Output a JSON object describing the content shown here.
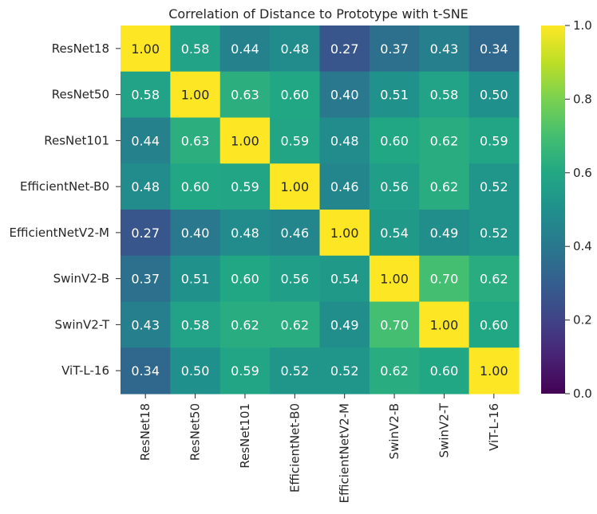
{
  "chart_data": {
    "type": "heatmap",
    "title": "Correlation of Distance to Prototype with t-SNE",
    "rows": [
      "ResNet18",
      "ResNet50",
      "ResNet101",
      "EfficientNet-B0",
      "EfficientNetV2-M",
      "SwinV2-B",
      "SwinV2-T",
      "ViT-L-16"
    ],
    "columns": [
      "ResNet18",
      "ResNet50",
      "ResNet101",
      "EfficientNet-B0",
      "EfficientNetV2-M",
      "SwinV2-B",
      "SwinV2-T",
      "ViT-L-16"
    ],
    "values": [
      [
        1.0,
        0.58,
        0.44,
        0.48,
        0.27,
        0.37,
        0.43,
        0.34
      ],
      [
        0.58,
        1.0,
        0.63,
        0.6,
        0.4,
        0.51,
        0.58,
        0.5
      ],
      [
        0.44,
        0.63,
        1.0,
        0.59,
        0.48,
        0.6,
        0.62,
        0.59
      ],
      [
        0.48,
        0.6,
        0.59,
        1.0,
        0.46,
        0.56,
        0.62,
        0.52
      ],
      [
        0.27,
        0.4,
        0.48,
        0.46,
        1.0,
        0.54,
        0.49,
        0.52
      ],
      [
        0.37,
        0.51,
        0.6,
        0.56,
        0.54,
        1.0,
        0.7,
        0.62
      ],
      [
        0.43,
        0.58,
        0.62,
        0.62,
        0.49,
        0.7,
        1.0,
        0.6
      ],
      [
        0.34,
        0.5,
        0.59,
        0.52,
        0.52,
        0.62,
        0.6,
        1.0
      ]
    ],
    "labels": [
      [
        "1.00",
        "0.58",
        "0.44",
        "0.48",
        "0.27",
        "0.37",
        "0.43",
        "0.34"
      ],
      [
        "0.58",
        "1.00",
        "0.63",
        "0.60",
        "0.40",
        "0.51",
        "0.58",
        "0.50"
      ],
      [
        "0.44",
        "0.63",
        "1.00",
        "0.59",
        "0.48",
        "0.60",
        "0.62",
        "0.59"
      ],
      [
        "0.48",
        "0.60",
        "0.59",
        "1.00",
        "0.46",
        "0.56",
        "0.62",
        "0.52"
      ],
      [
        "0.27",
        "0.40",
        "0.48",
        "0.46",
        "1.00",
        "0.54",
        "0.49",
        "0.52"
      ],
      [
        "0.37",
        "0.51",
        "0.60",
        "0.56",
        "0.54",
        "1.00",
        "0.70",
        "0.62"
      ],
      [
        "0.43",
        "0.58",
        "0.62",
        "0.62",
        "0.49",
        "0.70",
        "1.00",
        "0.60"
      ],
      [
        "0.34",
        "0.50",
        "0.59",
        "0.52",
        "0.52",
        "0.62",
        "0.60",
        "1.00"
      ]
    ],
    "colormap": "viridis",
    "vmin": 0.0,
    "vmax": 1.0,
    "colorbar_ticks": [
      0.0,
      0.2,
      0.4,
      0.6,
      0.8,
      1.0
    ],
    "colorbar_tick_labels": [
      "0.0",
      "0.2",
      "0.4",
      "0.6",
      "0.8",
      "1.0"
    ]
  }
}
